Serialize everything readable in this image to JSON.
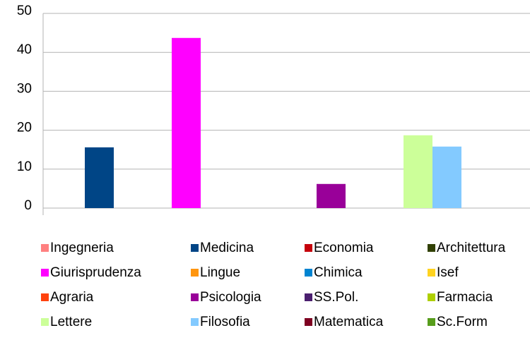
{
  "chart_data": {
    "type": "bar",
    "categories": [
      null
    ],
    "series": [
      {
        "name": "Ingegneria",
        "color": "#ff8080",
        "values": [
          0
        ]
      },
      {
        "name": "Medicina",
        "color": "#004586",
        "values": [
          15.6
        ]
      },
      {
        "name": "Economia",
        "color": "#c5000b",
        "values": [
          0
        ]
      },
      {
        "name": "Architettura",
        "color": "#314004",
        "values": [
          0
        ]
      },
      {
        "name": "Giurisprudenza",
        "color": "#ff00ff",
        "values": [
          43.7
        ]
      },
      {
        "name": "Lingue",
        "color": "#ff950e",
        "values": [
          0
        ]
      },
      {
        "name": "Chimica",
        "color": "#0084d1",
        "values": [
          0
        ]
      },
      {
        "name": "Isef",
        "color": "#ffd320",
        "values": [
          0
        ]
      },
      {
        "name": "Agraria",
        "color": "#ff420e",
        "values": [
          0
        ]
      },
      {
        "name": "Psicologia",
        "color": "#990099",
        "values": [
          6.2
        ]
      },
      {
        "name": "SS.Pol.",
        "color": "#4b1f6f",
        "values": [
          0
        ]
      },
      {
        "name": "Farmacia",
        "color": "#aecf00",
        "values": [
          0
        ]
      },
      {
        "name": "Lettere",
        "color": "#ccff99",
        "values": [
          18.7
        ]
      },
      {
        "name": "Filosofia",
        "color": "#83caff",
        "values": [
          15.8
        ]
      },
      {
        "name": "Matematica",
        "color": "#7e0021",
        "values": [
          0
        ]
      },
      {
        "name": "Sc.Form",
        "color": "#579d1c",
        "values": [
          0
        ]
      }
    ],
    "ylim": [
      0,
      50
    ],
    "yticks": [
      0,
      10,
      20,
      30,
      40,
      50
    ],
    "grid": true,
    "legend": "bottom"
  }
}
